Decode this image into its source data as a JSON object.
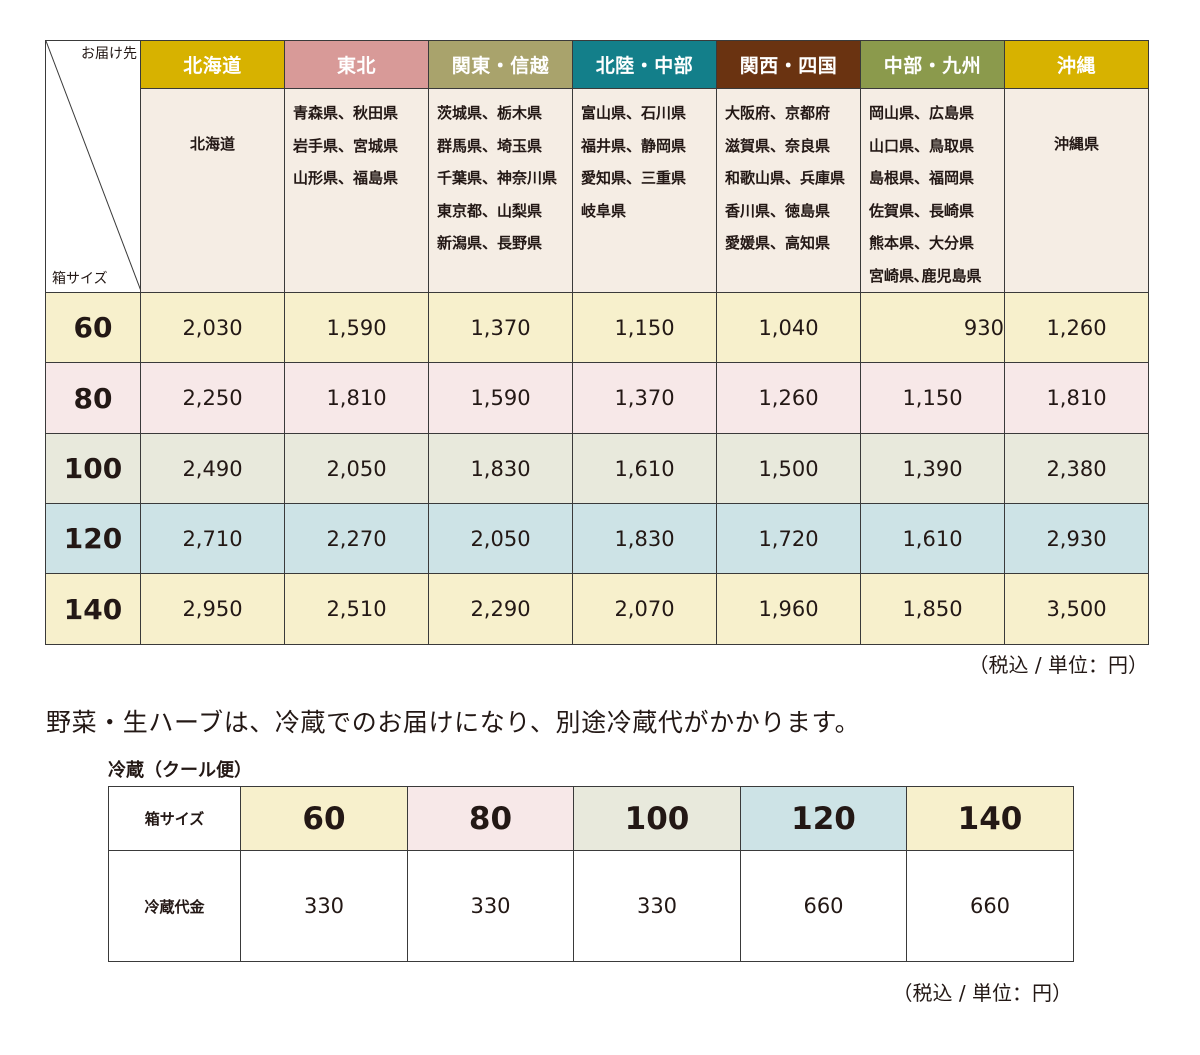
{
  "main_table": {
    "corner": {
      "destination_label": "お届け先",
      "size_label": "箱サイズ"
    },
    "regions": [
      {
        "name": "北海道",
        "bg": "#d7b200",
        "fg": "#ffffff",
        "prefectures": [
          "北海道"
        ],
        "centered": true
      },
      {
        "name": "東北",
        "bg": "#d89a98",
        "fg": "#ffffff",
        "prefectures": [
          "青森県、秋田県",
          "岩手県、宮城県",
          "山形県、福島県"
        ],
        "centered": false
      },
      {
        "name": "関東・信越",
        "bg": "#a9a36c",
        "fg": "#ffffff",
        "prefectures": [
          "茨城県、栃木県",
          "群馬県、埼玉県",
          "千葉県、神奈川県",
          "東京都、山梨県",
          "新潟県、長野県"
        ],
        "centered": false
      },
      {
        "name": "北陸・中部",
        "bg": "#137f8a",
        "fg": "#ffffff",
        "prefectures": [
          "富山県、石川県",
          "福井県、静岡県",
          "愛知県、三重県",
          "岐阜県"
        ],
        "centered": false
      },
      {
        "name": "関西・四国",
        "bg": "#6a3311",
        "fg": "#ffffff",
        "prefectures": [
          "大阪府、京都府",
          "滋賀県、奈良県",
          "和歌山県、兵庫県",
          "香川県、徳島県",
          "愛媛県、高知県"
        ],
        "centered": false
      },
      {
        "name": "中部・九州",
        "bg": "#8b9a4c",
        "fg": "#ffffff",
        "prefectures": [
          "岡山県、広島県",
          "山口県、鳥取県",
          "島根県、福岡県",
          "佐賀県、長崎県",
          "熊本県、大分県",
          "宮崎県､鹿児島県"
        ],
        "centered": false
      },
      {
        "name": "沖縄",
        "bg": "#d7b200",
        "fg": "#ffffff",
        "prefectures": [
          "沖縄県"
        ],
        "centered": true
      }
    ],
    "rows": [
      {
        "size": "60",
        "bg": "#f7f0cc",
        "prices": [
          "2,030",
          "1,590",
          "1,370",
          "1,150",
          "1,040",
          "930",
          "1,260"
        ]
      },
      {
        "size": "80",
        "bg": "#f7e8e8",
        "prices": [
          "2,250",
          "1,810",
          "1,590",
          "1,370",
          "1,260",
          "1,150",
          "1,810"
        ]
      },
      {
        "size": "100",
        "bg": "#e8e9dc",
        "prices": [
          "2,490",
          "2,050",
          "1,830",
          "1,610",
          "1,500",
          "1,390",
          "2,380"
        ]
      },
      {
        "size": "120",
        "bg": "#cde3e6",
        "prices": [
          "2,710",
          "2,270",
          "2,050",
          "1,830",
          "1,720",
          "1,610",
          "2,930"
        ]
      },
      {
        "size": "140",
        "bg": "#f7f0cc",
        "prices": [
          "2,950",
          "2,510",
          "2,290",
          "2,070",
          "1,960",
          "1,850",
          "3,500"
        ]
      }
    ],
    "note": "（税込 / 単位：円）"
  },
  "cool_section": {
    "message": "野菜・生ハーブは、冷蔵でのお届けになり、別途冷蔵代がかかります。",
    "title": "冷蔵（クール便）",
    "size_row_label": "箱サイズ",
    "fee_row_label": "冷蔵代金",
    "columns": [
      {
        "size": "60",
        "bg": "#f7f0cc",
        "fee": "330"
      },
      {
        "size": "80",
        "bg": "#f7e8e8",
        "fee": "330"
      },
      {
        "size": "100",
        "bg": "#e8e9dc",
        "fee": "330"
      },
      {
        "size": "120",
        "bg": "#cde3e6",
        "fee": "660"
      },
      {
        "size": "140",
        "bg": "#f7f0cc",
        "fee": "660"
      }
    ],
    "note": "（税込 / 単位：円）"
  }
}
